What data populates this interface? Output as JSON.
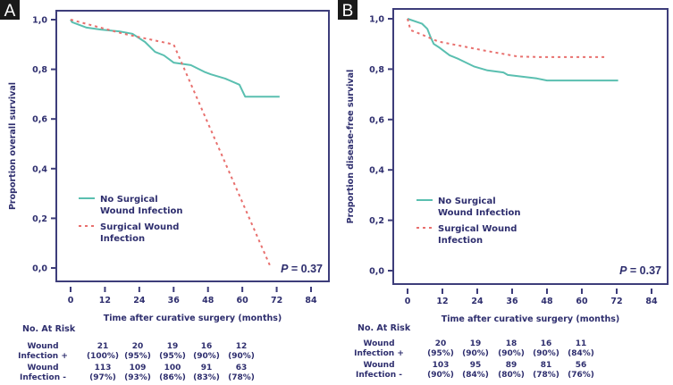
{
  "colors": {
    "no_infection": "#5abfb0",
    "infection": "#e8706e",
    "axis": "#3d3d7a",
    "text": "#2e2e6e"
  },
  "chart_data": [
    {
      "type": "line",
      "panel_label": "A",
      "title": "",
      "xlabel": "Time after curative surgery (months)",
      "ylabel": "Proportion overall survival",
      "xlim": [
        0,
        84
      ],
      "ylim": [
        0,
        1
      ],
      "x_ticks": [
        0,
        12,
        24,
        36,
        48,
        60,
        72,
        84
      ],
      "y_ticks": [
        0,
        0.2,
        0.4,
        0.6,
        0.8,
        1.0
      ],
      "y_tick_labels": [
        "0,0",
        "0,2",
        "0,4",
        "0,6",
        "0,8",
        "1,0"
      ],
      "grid": false,
      "legend_position": "center-left",
      "annotation": {
        "p_label": "P",
        "p_value": " = 0.37"
      },
      "series": [
        {
          "name_line1": "No Surgical",
          "name_line2": "Wound Infection",
          "style": "solid",
          "x": [
            0,
            0.5,
            5.6,
            10.6,
            17,
            21.6,
            26,
            29.5,
            32.6,
            36,
            42,
            46.7,
            49,
            54,
            59,
            61,
            73
          ],
          "y": [
            1.0,
            0.99,
            0.968,
            0.96,
            0.953,
            0.943,
            0.91,
            0.87,
            0.856,
            0.827,
            0.817,
            0.79,
            0.78,
            0.763,
            0.738,
            0.69,
            0.69
          ]
        },
        {
          "name_line1": "Surgical Wound",
          "name_line2": "Infection",
          "style": "dashed",
          "x": [
            0,
            18.5,
            36,
            70
          ],
          "y": [
            1.0,
            0.943,
            0.9,
            0.0
          ]
        }
      ],
      "at_risk": {
        "title": "No. At Risk",
        "rows": [
          {
            "label1": "Wound",
            "label2": "Infection +",
            "counts": [
              "21",
              "20",
              "19",
              "16",
              "12"
            ],
            "pcts": [
              "(100%)",
              "(95%)",
              "(95%)",
              "(90%)",
              "(90%)"
            ]
          },
          {
            "label1": "Wound",
            "label2": "Infection -",
            "counts": [
              "113",
              "109",
              "100",
              "91",
              "63"
            ],
            "pcts": [
              "(97%)",
              "(93%)",
              "(86%)",
              "(83%)",
              "(78%)"
            ]
          }
        ]
      }
    },
    {
      "type": "line",
      "panel_label": "B",
      "title": "",
      "xlabel": "Time after curative surgery (months)",
      "ylabel": "Proportion disease-free survival",
      "xlim": [
        0,
        84
      ],
      "ylim": [
        0,
        1
      ],
      "x_ticks": [
        0,
        12,
        24,
        36,
        48,
        60,
        72,
        84
      ],
      "y_ticks": [
        0,
        0.2,
        0.4,
        0.6,
        0.8,
        1.0
      ],
      "y_tick_labels": [
        "0,0",
        "0,2",
        "0,4",
        "0,6",
        "0,8",
        "1,0"
      ],
      "grid": false,
      "legend_position": "center-left",
      "annotation": {
        "p_label": "P",
        "p_value": " = 0.37"
      },
      "series": [
        {
          "name_line1": "No Surgical",
          "name_line2": "Wound Infection",
          "style": "solid",
          "x": [
            0,
            5,
            6.8,
            8,
            9,
            11,
            14.5,
            17.6,
            23,
            27.5,
            33,
            34.5,
            44.5,
            48,
            72.5
          ],
          "y": [
            1.0,
            0.98,
            0.96,
            0.925,
            0.9,
            0.885,
            0.855,
            0.84,
            0.81,
            0.795,
            0.787,
            0.777,
            0.763,
            0.755,
            0.755
          ]
        },
        {
          "name_line1": "Surgical Wound",
          "name_line2": "Infection",
          "style": "dashed",
          "x": [
            0,
            1,
            4.3,
            10.5,
            26,
            38,
            46,
            68
          ],
          "y": [
            1.0,
            0.955,
            0.94,
            0.91,
            0.875,
            0.85,
            0.848,
            0.848
          ]
        }
      ],
      "at_risk": {
        "title": "No. At Risk",
        "rows": [
          {
            "label1": "Wound",
            "label2": "Infection +",
            "counts": [
              "20",
              "19",
              "18",
              "16",
              "11"
            ],
            "pcts": [
              "(95%)",
              "(90%)",
              "(90%)",
              "(90%)",
              "(84%)"
            ]
          },
          {
            "label1": "Wound",
            "label2": "Infection -",
            "counts": [
              "103",
              "95",
              "89",
              "81",
              "56"
            ],
            "pcts": [
              "(90%)",
              "(84%)",
              "(80%)",
              "(78%)",
              "(76%)"
            ]
          }
        ]
      }
    }
  ]
}
